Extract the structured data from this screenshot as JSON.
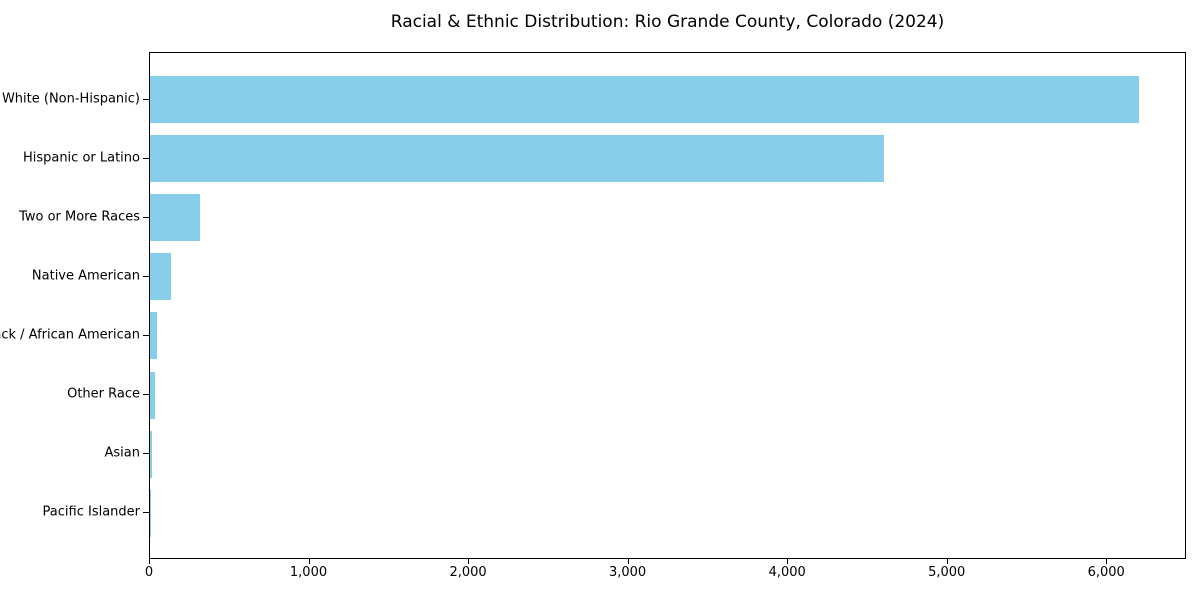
{
  "title": "Racial & Ethnic Distribution: Rio Grande County, Colorado (2024)",
  "colors": {
    "bar": "#87CEEB",
    "spine": "#000000",
    "text": "#000000",
    "background": "#ffffff"
  },
  "chart_data": {
    "type": "bar",
    "orientation": "horizontal",
    "title": "Racial & Ethnic Distribution: Rio Grande County, Colorado (2024)",
    "categories": [
      "White (Non-Hispanic)",
      "Hispanic or Latino",
      "Two or More Races",
      "Native American",
      "Black / African American",
      "Other Race",
      "Asian",
      "Pacific Islander"
    ],
    "values": [
      6200,
      4600,
      310,
      130,
      45,
      30,
      10,
      2
    ],
    "xlabel": "",
    "ylabel": "",
    "xlim": [
      0,
      6500
    ],
    "x_ticks": [
      0,
      1000,
      2000,
      3000,
      4000,
      5000,
      6000
    ],
    "x_tick_labels": [
      "0",
      "1,000",
      "2,000",
      "3,000",
      "4,000",
      "5,000",
      "6,000"
    ],
    "bar_color": "#87CEEB",
    "grid": false,
    "legend": null
  }
}
